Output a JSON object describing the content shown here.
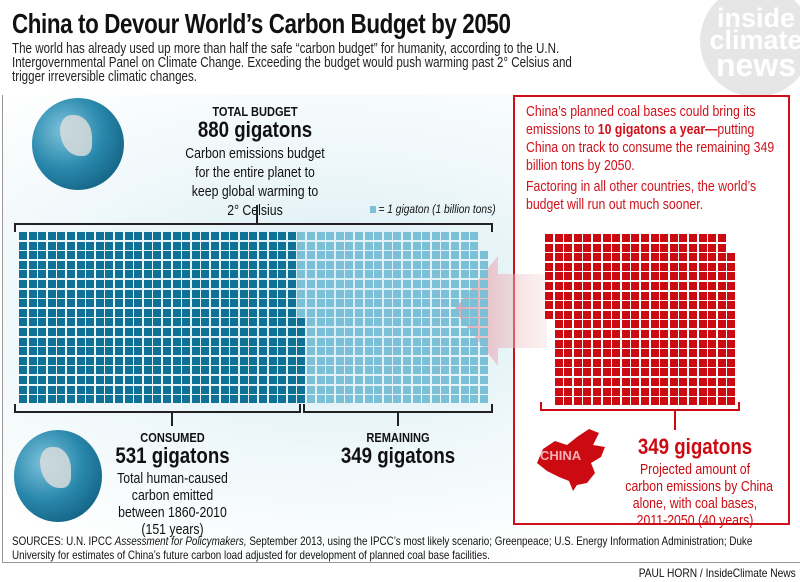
{
  "header": {
    "title": "China to Devour World’s Carbon Budget by 2050",
    "subtitle": "The world has already used up more than half the safe “carbon budget” for humanity, according to the U.N. Intergovernmental Panel on Climate Change. Exceeding the budget would push warming past 2° Celsius and trigger irreversible climatic changes.",
    "logo": [
      "inside",
      "climate",
      "news"
    ]
  },
  "total": {
    "caption": "TOTAL BUDGET",
    "value": "880 gigatons",
    "desc": [
      "Carbon emissions budget",
      "for the entire planet to",
      "keep global warming to",
      "2° Celsius"
    ]
  },
  "legend": "= 1 gigaton (1 billion tons)",
  "consumed": {
    "caption": "CONSUMED",
    "value": "531 gigatons",
    "desc": [
      "Total human-caused",
      "carbon emitted",
      "between 1860-2010",
      "(151 years)"
    ]
  },
  "remaining": {
    "caption": "REMAINING",
    "value": "349 gigatons"
  },
  "china": {
    "para1_a": "China’s planned coal bases could bring its emissions to ",
    "para1_bold": "10 gigatons a year—",
    "para1_b": "putting China on track to consume the remaining 349 billion tons by 2050.",
    "para2": "Factoring in all other countries, the world’s budget will run out much sooner.",
    "map_label": "CHINA",
    "value": "349 gigatons",
    "desc": [
      "Projected amount of",
      "carbon emissions by China",
      "alone, with coal bases,",
      "2011-2050 (40 years)"
    ]
  },
  "sources_label": "SOURCES: U.N. IPCC ",
  "sources_italic": "Assessment for Policymakers,",
  "sources_rest": " September 2013, using the IPCC’s most likely scenario; Greenpeace; U.S. Energy Information Administration; Duke University for estimates of China’s future carbon load adjusted for development of planned coal base facilities.",
  "credit": "PAUL HORN / InsideClimate News",
  "colors": {
    "consumed": "#0f7195",
    "remaining": "#7cc0d7",
    "china": "#cc0a12",
    "arrow": "#e9a0a8"
  },
  "chart_data": {
    "type": "waffle",
    "unit": "1 gigaton (1 billion tons)",
    "total": 880,
    "rows": 18,
    "series": [
      {
        "name": "Consumed",
        "value": 531
      },
      {
        "name": "Remaining",
        "value": 349
      },
      {
        "name": "China projected 2011-2050",
        "value": 349
      }
    ]
  }
}
